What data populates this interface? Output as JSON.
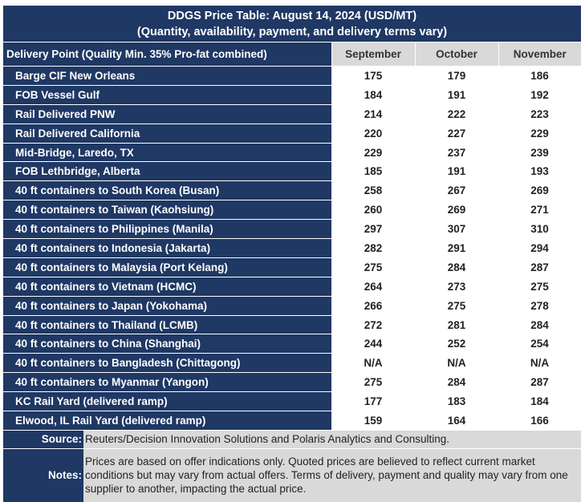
{
  "title": {
    "line1": "DDGS Price Table: August 14, 2024 (USD/MT)",
    "line2": "(Quantity, availability, payment, and delivery terms vary)"
  },
  "header": {
    "delivery_point": "Delivery Point (Quality Min. 35% Pro-fat combined)",
    "months": [
      "September",
      "October",
      "November"
    ]
  },
  "rows": [
    {
      "label": "Barge CIF New Orleans",
      "values": [
        "175",
        "179",
        "186"
      ]
    },
    {
      "label": "FOB Vessel Gulf",
      "values": [
        "184",
        "191",
        "192"
      ]
    },
    {
      "label": "Rail Delivered PNW",
      "values": [
        "214",
        "222",
        "223"
      ]
    },
    {
      "label": "Rail Delivered California",
      "values": [
        "220",
        "227",
        "229"
      ]
    },
    {
      "label": "Mid-Bridge, Laredo, TX",
      "values": [
        "229",
        "237",
        "239"
      ]
    },
    {
      "label": "FOB Lethbridge, Alberta",
      "values": [
        "185",
        "191",
        "193"
      ]
    },
    {
      "label": "40 ft containers to South Korea (Busan)",
      "values": [
        "258",
        "267",
        "269"
      ]
    },
    {
      "label": "40 ft containers to Taiwan (Kaohsiung)",
      "values": [
        "260",
        "269",
        "271"
      ]
    },
    {
      "label": "40 ft containers to Philippines (Manila)",
      "values": [
        "297",
        "307",
        "310"
      ]
    },
    {
      "label": "40 ft containers to Indonesia (Jakarta)",
      "values": [
        "282",
        "291",
        "294"
      ]
    },
    {
      "label": "40 ft containers to Malaysia (Port Kelang)",
      "values": [
        "275",
        "284",
        "287"
      ]
    },
    {
      "label": "40 ft containers to Vietnam (HCMC)",
      "values": [
        "264",
        "273",
        "275"
      ]
    },
    {
      "label": "40 ft containers to Japan (Yokohama)",
      "values": [
        "266",
        "275",
        "278"
      ]
    },
    {
      "label": "40 ft containers to Thailand (LCMB)",
      "values": [
        "272",
        "281",
        "284"
      ]
    },
    {
      "label": "40 ft containers to China (Shanghai)",
      "values": [
        "244",
        "252",
        "254"
      ]
    },
    {
      "label": "40 ft containers to Bangladesh (Chittagong)",
      "values": [
        "N/A",
        "N/A",
        "N/A"
      ]
    },
    {
      "label": "40 ft containers to Myanmar (Yangon)",
      "values": [
        "275",
        "284",
        "287"
      ]
    },
    {
      "label": "KC Rail Yard (delivered ramp)",
      "values": [
        "177",
        "183",
        "184"
      ]
    },
    {
      "label": "Elwood, IL Rail Yard (delivered ramp)",
      "values": [
        "159",
        "164",
        "166"
      ]
    }
  ],
  "footer": {
    "source_label": "Source:",
    "source_text": "Reuters/Decision Innovation Solutions and Polaris Analytics and Consulting.",
    "notes_label": "Notes:",
    "notes_text": "Prices are based on offer indications only. Quoted prices are believed to reflect current market conditions but may vary from actual offers. Terms of delivery, payment and quality may vary from one supplier to another, impacting the actual price."
  },
  "colors": {
    "navy": "#1f3864",
    "header_gray": "#d9d9d9"
  }
}
